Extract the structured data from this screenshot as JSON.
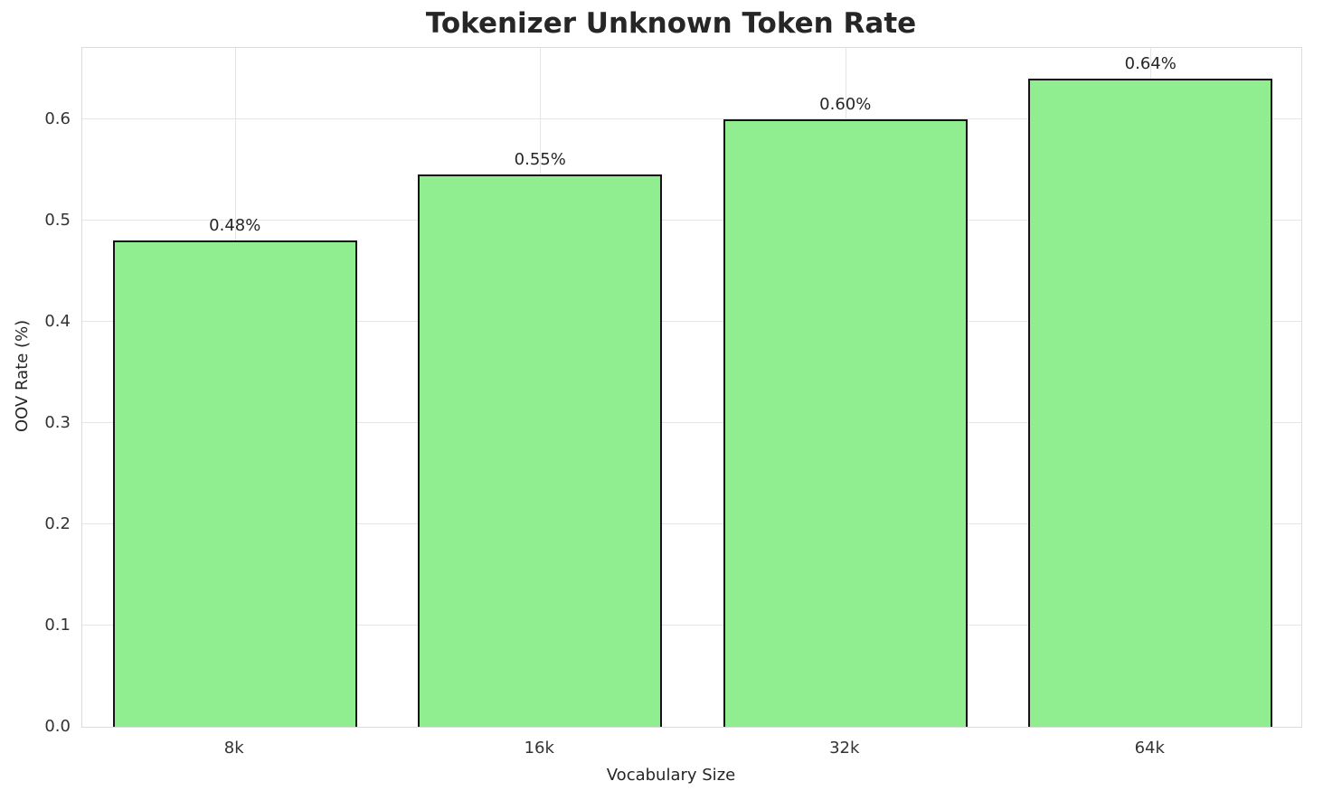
{
  "chart_data": {
    "type": "bar",
    "title": "Tokenizer Unknown Token Rate",
    "xlabel": "Vocabulary Size",
    "ylabel": "OOV Rate (%)",
    "categories": [
      "8k",
      "16k",
      "32k",
      "64k"
    ],
    "values": [
      0.48,
      0.545,
      0.6,
      0.64
    ],
    "value_labels": [
      "0.48%",
      "0.55%",
      "0.60%",
      "0.64%"
    ],
    "yticks": [
      0.0,
      0.1,
      0.2,
      0.3,
      0.4,
      0.5,
      0.6
    ],
    "ytick_labels": [
      "0.0",
      "0.1",
      "0.2",
      "0.3",
      "0.4",
      "0.5",
      "0.6"
    ],
    "ylim": [
      0,
      0.672
    ],
    "grid": true,
    "legend": false,
    "bar_color": "#90EE90",
    "bar_edge_color": "#141414"
  }
}
